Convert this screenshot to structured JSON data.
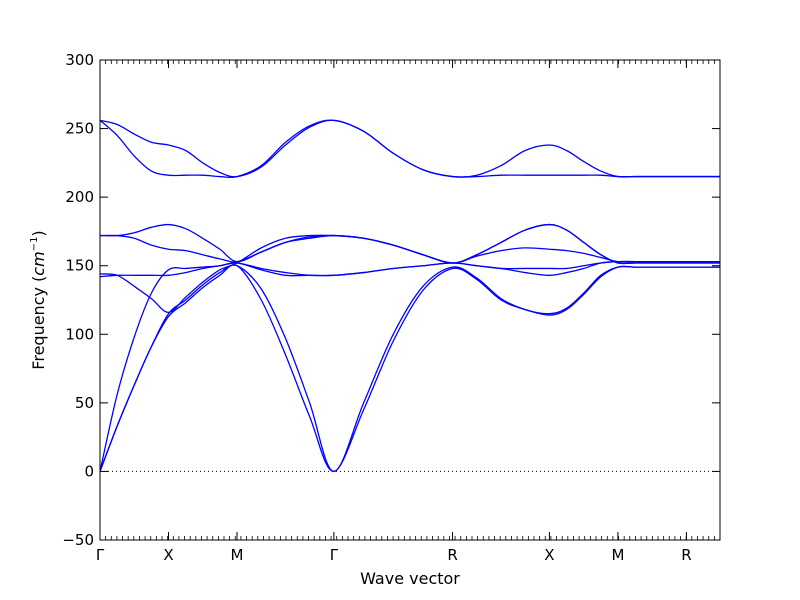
{
  "chart_data": {
    "type": "line",
    "title": "",
    "xlabel": "Wave vector",
    "ylabel_prefix": "Frequency (",
    "ylabel_unit_base": "cm",
    "ylabel_unit_exp": "−1",
    "ylabel_suffix": ")",
    "ylim": [
      -50,
      300
    ],
    "yticks": [
      -50,
      0,
      50,
      100,
      150,
      200,
      250,
      300
    ],
    "ytick_labels": [
      "−50",
      "0",
      "50",
      "100",
      "150",
      "200",
      "250",
      "300"
    ],
    "xlim": [
      0,
      4.525
    ],
    "xticks": [
      0,
      0.5,
      1.0,
      1.707,
      2.573,
      3.28,
      3.78,
      4.28
    ],
    "xtick_labels": [
      "Γ",
      "X",
      "M",
      "Γ",
      "R",
      "X",
      "M",
      "R"
    ],
    "grid": false,
    "zero_line": "dotted",
    "line_color": "#0000ff",
    "x": [
      0,
      0.125,
      0.25,
      0.375,
      0.5,
      0.625,
      0.75,
      0.875,
      1.0,
      1.177,
      1.354,
      1.53,
      1.707,
      1.924,
      2.14,
      2.357,
      2.573,
      2.75,
      2.927,
      3.103,
      3.28,
      3.405,
      3.53,
      3.655,
      3.78,
      3.905,
      4.03,
      4.155,
      4.28,
      4.405,
      4.525
    ],
    "series": [
      {
        "values": [
          0,
          33,
          63,
          91,
          113,
          123,
          134,
          143,
          150,
          125,
          85,
          40,
          0,
          45,
          95,
          132,
          148,
          140,
          125,
          118,
          114,
          118,
          129,
          142,
          149,
          149,
          149,
          149,
          149,
          149,
          149
        ]
      },
      {
        "values": [
          0,
          33,
          63,
          91,
          115,
          125,
          136,
          145,
          150,
          133,
          97,
          50,
          0,
          50,
          100,
          135,
          149,
          141,
          126,
          118,
          115,
          119,
          130,
          143,
          149,
          149,
          149,
          149,
          149,
          149,
          149
        ]
      },
      {
        "values": [
          0,
          56,
          98,
          130,
          147,
          148,
          149,
          150,
          152,
          148,
          145,
          143,
          143,
          145,
          148,
          150,
          152,
          150,
          148,
          148,
          148,
          148,
          150,
          152,
          153,
          153,
          153,
          153,
          153,
          153,
          153
        ]
      },
      {
        "values": [
          142,
          143,
          143,
          143,
          143,
          145,
          148,
          150,
          152,
          147,
          143,
          143,
          143,
          145,
          148,
          150,
          152,
          150,
          148,
          145,
          143,
          145,
          148,
          152,
          153,
          153,
          153,
          153,
          153,
          153,
          153
        ]
      },
      {
        "values": [
          144,
          143,
          135,
          126,
          116,
          127,
          138,
          147,
          152,
          163,
          170,
          172,
          172,
          170,
          165,
          158,
          152,
          158,
          167,
          176,
          180,
          176,
          167,
          158,
          152,
          152,
          152,
          152,
          152,
          152,
          152
        ]
      },
      {
        "values": [
          172,
          172,
          170,
          165,
          162,
          161,
          158,
          155,
          153,
          160,
          167,
          170,
          172,
          170,
          165,
          158,
          152,
          157,
          161,
          163,
          162,
          161,
          159,
          156,
          153,
          153,
          153,
          153,
          153,
          153,
          153
        ]
      },
      {
        "values": [
          172,
          172,
          174,
          178,
          180,
          177,
          170,
          162,
          153,
          160,
          167,
          171,
          172,
          170,
          165,
          158,
          152,
          158,
          167,
          176,
          180,
          176,
          167,
          158,
          152,
          152,
          152,
          152,
          152,
          152,
          152
        ]
      },
      {
        "values": [
          256,
          245,
          230,
          219,
          216,
          216,
          216,
          215,
          215,
          223,
          240,
          252,
          256,
          248,
          232,
          220,
          215,
          215,
          216,
          216,
          216,
          216,
          216,
          216,
          215,
          215,
          215,
          215,
          215,
          215,
          215
        ]
      },
      {
        "values": [
          256,
          253,
          246,
          240,
          238,
          234,
          225,
          218,
          215,
          222,
          238,
          251,
          256,
          248,
          232,
          220,
          215,
          216,
          223,
          234,
          238,
          234,
          226,
          219,
          215,
          215,
          215,
          215,
          215,
          215,
          215
        ]
      }
    ]
  }
}
